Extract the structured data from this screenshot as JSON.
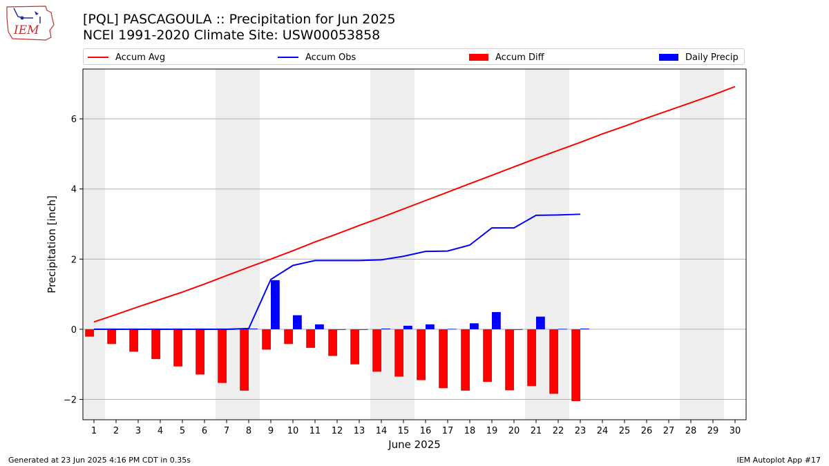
{
  "header": {
    "title": "[PQL] PASCAGOULA :: Precipitation for Jun 2025",
    "subtitle": "NCEI 1991-2020 Climate Site: USW00053858",
    "logo_text": "IEM"
  },
  "footer": {
    "left": "Generated at 23 Jun 2025 4:16 PM CDT in 0.35s",
    "right": "IEM Autoplot App #17"
  },
  "colors": {
    "avg": "#ff0000",
    "obs": "#0000ff",
    "diff": "#ff0000",
    "daily": "#0000ff",
    "weekend": "#eeeeee",
    "grid": "#b0b0b0"
  },
  "chart_data": {
    "type": "bar",
    "xlabel": "June 2025",
    "ylabel": "Precipitation [inch]",
    "ylim": [
      -2.58,
      7.42
    ],
    "yticks": [
      -2,
      0,
      2,
      4,
      6
    ],
    "ytick_labels": [
      "−2",
      "0",
      "2",
      "4",
      "6"
    ],
    "x": [
      1,
      2,
      3,
      4,
      5,
      6,
      7,
      8,
      9,
      10,
      11,
      12,
      13,
      14,
      15,
      16,
      17,
      18,
      19,
      20,
      21,
      22,
      23,
      24,
      25,
      26,
      27,
      28,
      29,
      30
    ],
    "xtick_labels": [
      "1",
      "2",
      "3",
      "4",
      "5",
      "6",
      "7",
      "8",
      "9",
      "10",
      "11",
      "12",
      "13",
      "14",
      "15",
      "16",
      "17",
      "18",
      "19",
      "20",
      "21",
      "22",
      "23",
      "24",
      "25",
      "26",
      "27",
      "28",
      "29",
      "30"
    ],
    "weekend_days": [
      1,
      7,
      8,
      14,
      15,
      21,
      22,
      28,
      29
    ],
    "grid": "y",
    "legend_placement": "top",
    "series": [
      {
        "name": "Accum Avg",
        "kind": "line",
        "x": [
          1,
          2,
          3,
          4,
          5,
          6,
          7,
          8,
          9,
          10,
          11,
          12,
          13,
          14,
          15,
          16,
          17,
          18,
          19,
          20,
          21,
          22,
          23,
          24,
          25,
          26,
          27,
          28,
          29,
          30
        ],
        "values": [
          0.21,
          0.42,
          0.64,
          0.85,
          1.06,
          1.29,
          1.53,
          1.77,
          2.0,
          2.24,
          2.49,
          2.72,
          2.96,
          3.19,
          3.43,
          3.67,
          3.91,
          4.15,
          4.39,
          4.63,
          4.87,
          5.1,
          5.33,
          5.57,
          5.79,
          6.02,
          6.24,
          6.46,
          6.68,
          6.92
        ]
      },
      {
        "name": "Accum Obs",
        "kind": "line",
        "x": [
          1,
          2,
          3,
          4,
          5,
          6,
          7,
          8,
          9,
          10,
          11,
          12,
          13,
          14,
          15,
          16,
          17,
          18,
          19,
          20,
          21,
          22,
          23
        ],
        "values": [
          0,
          0,
          0,
          0,
          0,
          0,
          0,
          0.02,
          1.42,
          1.82,
          1.96,
          1.96,
          1.96,
          1.98,
          2.08,
          2.22,
          2.23,
          2.4,
          2.89,
          2.89,
          3.25,
          3.26,
          3.28
        ]
      },
      {
        "name": "Accum Diff",
        "kind": "bar",
        "x": [
          1,
          2,
          3,
          4,
          5,
          6,
          7,
          8,
          9,
          10,
          11,
          12,
          13,
          14,
          15,
          16,
          17,
          18,
          19,
          20,
          21,
          22,
          23
        ],
        "values": [
          -0.21,
          -0.42,
          -0.64,
          -0.85,
          -1.06,
          -1.29,
          -1.53,
          -1.75,
          -0.58,
          -0.42,
          -0.53,
          -0.76,
          -1.0,
          -1.21,
          -1.35,
          -1.45,
          -1.68,
          -1.75,
          -1.5,
          -1.74,
          -1.62,
          -1.84,
          -2.05
        ]
      },
      {
        "name": "Daily Precip",
        "kind": "bar",
        "x": [
          1,
          2,
          3,
          4,
          5,
          6,
          7,
          8,
          9,
          10,
          11,
          12,
          13,
          14,
          15,
          16,
          17,
          18,
          19,
          20,
          21,
          22,
          23
        ],
        "values": [
          0,
          0,
          0,
          0,
          0,
          0,
          0,
          0.02,
          1.4,
          0.4,
          0.14,
          0,
          0,
          0.02,
          0.1,
          0.14,
          0.01,
          0.17,
          0.49,
          0,
          0.36,
          0.01,
          0.02
        ]
      }
    ]
  }
}
